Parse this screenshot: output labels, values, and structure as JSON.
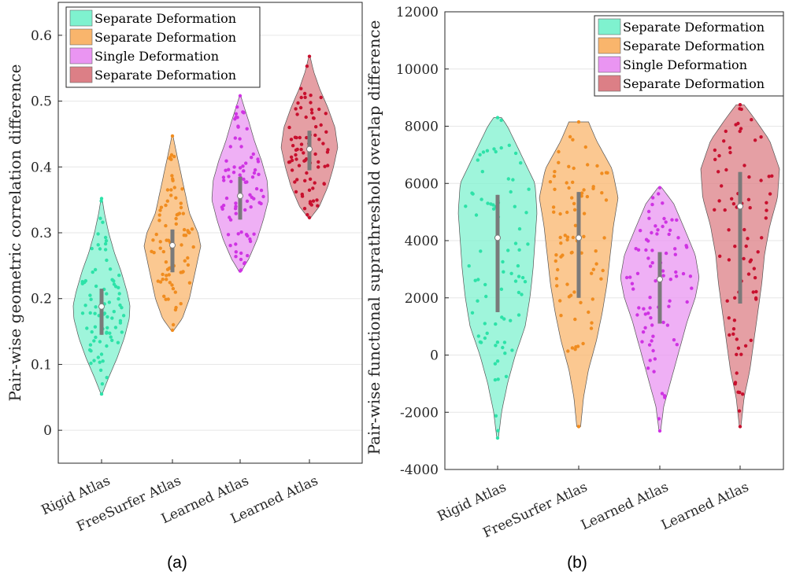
{
  "chart_data": [
    {
      "type": "violin",
      "panel_label": "(a)",
      "ylabel": "Pair-wise geometric correlation difference",
      "ylim": [
        -0.05,
        0.65
      ],
      "yticks": [
        0,
        0.1,
        0.2,
        0.3,
        0.4,
        0.5,
        0.6
      ],
      "ytick_labels": [
        "0",
        "0.1",
        "0.2",
        "0.3",
        "0.4",
        "0.5",
        "0.6"
      ],
      "grid": true,
      "legend_position": "top-left",
      "categories": [
        "Rigid Atlas",
        "FreeSurfer Atlas",
        "Learned Atlas",
        "Learned Atlas"
      ],
      "series": [
        {
          "name": "Separate Deformation",
          "color": "#7ff2cf",
          "point_color": "#2de2a8",
          "min": 0.055,
          "max": 0.352,
          "median": 0.188,
          "q1": 0.145,
          "q3": 0.215,
          "shape": [
            [
              0.055,
              0.02
            ],
            [
              0.08,
              0.25
            ],
            [
              0.11,
              0.55
            ],
            [
              0.14,
              0.8
            ],
            [
              0.17,
              0.98
            ],
            [
              0.19,
              1.0
            ],
            [
              0.21,
              0.9
            ],
            [
              0.24,
              0.7
            ],
            [
              0.27,
              0.45
            ],
            [
              0.3,
              0.25
            ],
            [
              0.33,
              0.1
            ],
            [
              0.352,
              0.02
            ]
          ]
        },
        {
          "name": "Separate Deformation",
          "color": "#f9b56c",
          "point_color": "#f08c1f",
          "min": 0.152,
          "max": 0.447,
          "median": 0.281,
          "q1": 0.24,
          "q3": 0.305,
          "shape": [
            [
              0.152,
              0.05
            ],
            [
              0.17,
              0.35
            ],
            [
              0.2,
              0.6
            ],
            [
              0.23,
              0.75
            ],
            [
              0.26,
              0.9
            ],
            [
              0.28,
              1.0
            ],
            [
              0.3,
              0.9
            ],
            [
              0.33,
              0.6
            ],
            [
              0.36,
              0.45
            ],
            [
              0.39,
              0.3
            ],
            [
              0.42,
              0.15
            ],
            [
              0.447,
              0.02
            ]
          ]
        },
        {
          "name": "Single Deformation",
          "color": "#ea95f2",
          "point_color": "#cf33e3",
          "min": 0.242,
          "max": 0.508,
          "median": 0.356,
          "q1": 0.32,
          "q3": 0.385,
          "shape": [
            [
              0.242,
              0.05
            ],
            [
              0.26,
              0.3
            ],
            [
              0.29,
              0.6
            ],
            [
              0.32,
              0.82
            ],
            [
              0.35,
              1.0
            ],
            [
              0.38,
              0.95
            ],
            [
              0.41,
              0.75
            ],
            [
              0.44,
              0.5
            ],
            [
              0.47,
              0.3
            ],
            [
              0.49,
              0.15
            ],
            [
              0.508,
              0.02
            ]
          ]
        },
        {
          "name": "Separate Deformation",
          "color": "#dc7f86",
          "point_color": "#c8102e",
          "min": 0.323,
          "max": 0.568,
          "median": 0.427,
          "q1": 0.395,
          "q3": 0.455,
          "shape": [
            [
              0.323,
              0.05
            ],
            [
              0.34,
              0.35
            ],
            [
              0.37,
              0.65
            ],
            [
              0.4,
              0.85
            ],
            [
              0.43,
              1.0
            ],
            [
              0.46,
              0.9
            ],
            [
              0.49,
              0.65
            ],
            [
              0.52,
              0.35
            ],
            [
              0.545,
              0.15
            ],
            [
              0.568,
              0.02
            ]
          ]
        }
      ]
    },
    {
      "type": "violin",
      "panel_label": "(b)",
      "ylabel": "Pair-wise functional suprathreshold overlap difference",
      "ylim": [
        -4000,
        12000
      ],
      "yticks": [
        -4000,
        -2000,
        0,
        2000,
        4000,
        6000,
        8000,
        10000,
        12000
      ],
      "ytick_labels": [
        "-4000",
        "-2000",
        "0",
        "2000",
        "4000",
        "6000",
        "8000",
        "10000",
        "12000"
      ],
      "grid": true,
      "legend_position": "top-right",
      "categories": [
        "Rigid Atlas",
        "FreeSurfer Atlas",
        "Learned Atlas",
        "Learned Atlas"
      ],
      "series": [
        {
          "name": "Separate Deformation",
          "color": "#7ff2cf",
          "point_color": "#2de2a8",
          "min": -2900,
          "max": 8300,
          "median": 4100,
          "q1": 1500,
          "q3": 5600,
          "shape": [
            [
              -2900,
              0.02
            ],
            [
              -2000,
              0.1
            ],
            [
              -1000,
              0.25
            ],
            [
              0,
              0.45
            ],
            [
              1000,
              0.7
            ],
            [
              2000,
              0.82
            ],
            [
              3000,
              0.9
            ],
            [
              4000,
              0.95
            ],
            [
              5000,
              1.0
            ],
            [
              6000,
              0.95
            ],
            [
              7000,
              0.6
            ],
            [
              8000,
              0.25
            ],
            [
              8300,
              0.1
            ]
          ]
        },
        {
          "name": "Separate Deformation",
          "color": "#f9b56c",
          "point_color": "#f08c1f",
          "min": -2500,
          "max": 8150,
          "median": 4100,
          "q1": 2000,
          "q3": 5700,
          "shape": [
            [
              -2500,
              0.05
            ],
            [
              -1500,
              0.12
            ],
            [
              -500,
              0.25
            ],
            [
              500,
              0.45
            ],
            [
              1500,
              0.6
            ],
            [
              2500,
              0.72
            ],
            [
              3500,
              0.8
            ],
            [
              4500,
              0.88
            ],
            [
              5500,
              1.0
            ],
            [
              6500,
              0.85
            ],
            [
              7500,
              0.45
            ],
            [
              8150,
              0.25
            ]
          ]
        },
        {
          "name": "Single Deformation",
          "color": "#ea95f2",
          "point_color": "#cf33e3",
          "min": -2650,
          "max": 5850,
          "median": 2650,
          "q1": 1100,
          "q3": 3600,
          "shape": [
            [
              -2650,
              0.02
            ],
            [
              -1800,
              0.1
            ],
            [
              -800,
              0.3
            ],
            [
              200,
              0.5
            ],
            [
              1200,
              0.7
            ],
            [
              2000,
              0.9
            ],
            [
              2700,
              1.0
            ],
            [
              3500,
              0.9
            ],
            [
              4500,
              0.6
            ],
            [
              5300,
              0.35
            ],
            [
              5850,
              0.05
            ]
          ]
        },
        {
          "name": "Separate Deformation",
          "color": "#dc7f86",
          "point_color": "#c8102e",
          "min": -2500,
          "max": 8750,
          "median": 5200,
          "q1": 1800,
          "q3": 6400,
          "shape": [
            [
              -2500,
              0.02
            ],
            [
              -1500,
              0.1
            ],
            [
              -500,
              0.25
            ],
            [
              500,
              0.35
            ],
            [
              1500,
              0.45
            ],
            [
              2500,
              0.55
            ],
            [
              3500,
              0.62
            ],
            [
              4500,
              0.75
            ],
            [
              5500,
              0.95
            ],
            [
              6500,
              1.0
            ],
            [
              7500,
              0.75
            ],
            [
              8300,
              0.35
            ],
            [
              8750,
              0.1
            ]
          ]
        }
      ]
    }
  ]
}
